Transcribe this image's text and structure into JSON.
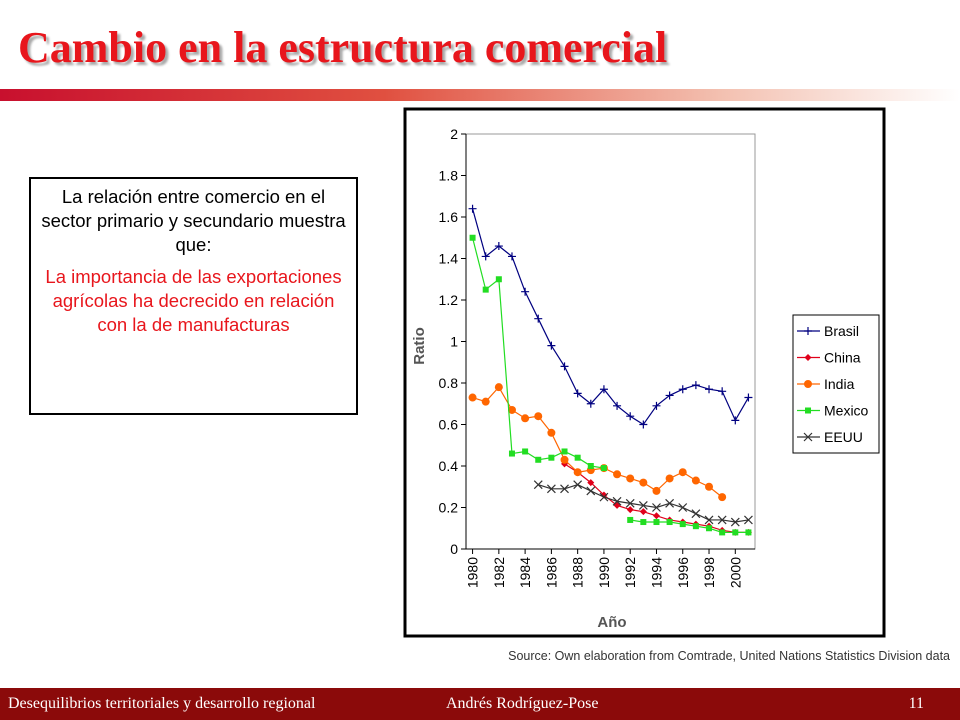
{
  "slide": {
    "title": "Cambio en la estructura comercial",
    "box_paragraphs": [
      "La relación entre comercio en el sector primario y secundario muestra que:",
      "La importancia de las exportaciones agrícolas ha decrecido en relación con la de manufacturas"
    ],
    "source": "Source: Own elaboration from Comtrade, United Nations Statistics Division data",
    "footer_left": "Desequilibrios territoriales y desarrollo regional",
    "footer_center": "Andrés  Rodríguez-Pose",
    "footer_right": "11"
  },
  "chart_data": {
    "type": "line",
    "x_label": "Año",
    "y_label": "Ratio",
    "x": [
      1980,
      1981,
      1982,
      1983,
      1984,
      1985,
      1986,
      1987,
      1988,
      1989,
      1990,
      1991,
      1992,
      1993,
      1994,
      1995,
      1996,
      1997,
      1998,
      1999,
      2000,
      2001
    ],
    "xlim": [
      1979.5,
      2001.5
    ],
    "xticks": [
      1980,
      1982,
      1984,
      1986,
      1988,
      1990,
      1992,
      1994,
      1996,
      1998,
      2000
    ],
    "ylim": [
      0,
      2
    ],
    "yticks": [
      0,
      0.2,
      0.4,
      0.6,
      0.8,
      1,
      1.2,
      1.4,
      1.6,
      1.8,
      2
    ],
    "legend": "right",
    "series": [
      {
        "name": "Brasil",
        "color": "#000080",
        "marker": "plus",
        "values": [
          1.64,
          1.41,
          1.46,
          1.41,
          1.24,
          1.11,
          0.98,
          0.88,
          0.75,
          0.7,
          0.77,
          0.69,
          0.64,
          0.6,
          0.69,
          0.74,
          0.77,
          0.79,
          0.77,
          0.76,
          0.62,
          0.73
        ]
      },
      {
        "name": "China",
        "color": "#e0001a",
        "marker": "diamond",
        "values": [
          null,
          null,
          null,
          null,
          null,
          null,
          null,
          0.41,
          0.37,
          0.32,
          0.26,
          0.21,
          0.19,
          0.18,
          0.16,
          0.14,
          0.13,
          0.12,
          0.11,
          0.09,
          0.08,
          0.08
        ]
      },
      {
        "name": "India",
        "color": "#ff6600",
        "marker": "circle",
        "values": [
          0.73,
          0.71,
          0.78,
          0.67,
          0.63,
          0.64,
          0.56,
          0.43,
          0.37,
          0.38,
          0.39,
          0.36,
          0.34,
          0.32,
          0.28,
          0.34,
          0.37,
          0.33,
          0.3,
          0.25,
          null,
          null
        ]
      },
      {
        "name": "Mexico",
        "color": "#22dd22",
        "marker": "square",
        "values": [
          1.5,
          1.25,
          1.3,
          0.46,
          0.47,
          0.43,
          0.44,
          0.47,
          0.44,
          0.4,
          0.39,
          null,
          0.14,
          0.13,
          0.13,
          0.13,
          0.12,
          0.11,
          0.1,
          0.08,
          0.08,
          0.08
        ]
      },
      {
        "name": "EEUU",
        "color": "#333333",
        "marker": "cross",
        "values": [
          null,
          null,
          null,
          null,
          null,
          0.31,
          0.29,
          0.29,
          0.31,
          0.28,
          0.25,
          0.23,
          0.22,
          0.21,
          0.2,
          0.22,
          0.2,
          0.17,
          0.14,
          0.14,
          0.13,
          0.14
        ]
      }
    ]
  }
}
